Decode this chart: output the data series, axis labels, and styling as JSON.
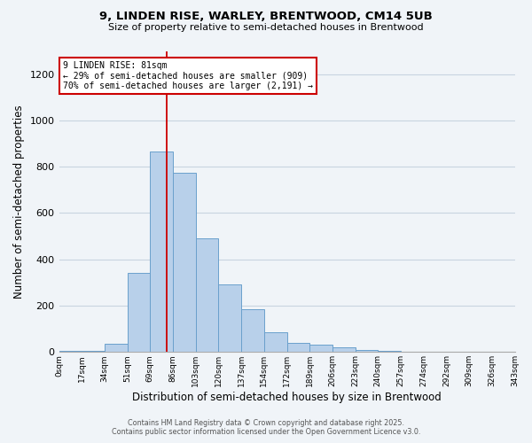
{
  "title_line1": "9, LINDEN RISE, WARLEY, BRENTWOOD, CM14 5UB",
  "title_line2": "Size of property relative to semi-detached houses in Brentwood",
  "xlabel": "Distribution of semi-detached houses by size in Brentwood",
  "ylabel": "Number of semi-detached properties",
  "bin_labels": [
    "0sqm",
    "17sqm",
    "34sqm",
    "51sqm",
    "69sqm",
    "86sqm",
    "103sqm",
    "120sqm",
    "137sqm",
    "154sqm",
    "172sqm",
    "189sqm",
    "206sqm",
    "223sqm",
    "240sqm",
    "257sqm",
    "274sqm",
    "292sqm",
    "309sqm",
    "326sqm",
    "343sqm"
  ],
  "bar_values": [
    5,
    5,
    35,
    340,
    865,
    775,
    490,
    290,
    185,
    85,
    40,
    30,
    20,
    10,
    5,
    3,
    1,
    0,
    0,
    0
  ],
  "bar_color": "#b8d0ea",
  "bar_edge_color": "#6aa0cc",
  "vline_x": 4.71,
  "red_line_label": "9 LINDEN RISE: 81sqm",
  "annotation_line2": "← 29% of semi-detached houses are smaller (909)",
  "annotation_line3": "70% of semi-detached houses are larger (2,191) →",
  "vline_color": "#cc0000",
  "annotation_box_edgecolor": "#cc0000",
  "ylim": [
    0,
    1300
  ],
  "yticks": [
    0,
    200,
    400,
    600,
    800,
    1000,
    1200
  ],
  "footer_line1": "Contains HM Land Registry data © Crown copyright and database right 2025.",
  "footer_line2": "Contains public sector information licensed under the Open Government Licence v3.0.",
  "background_color": "#f0f4f8",
  "grid_color": "#c8d4e0",
  "fig_width": 6.0,
  "fig_height": 5.0,
  "dpi": 100
}
